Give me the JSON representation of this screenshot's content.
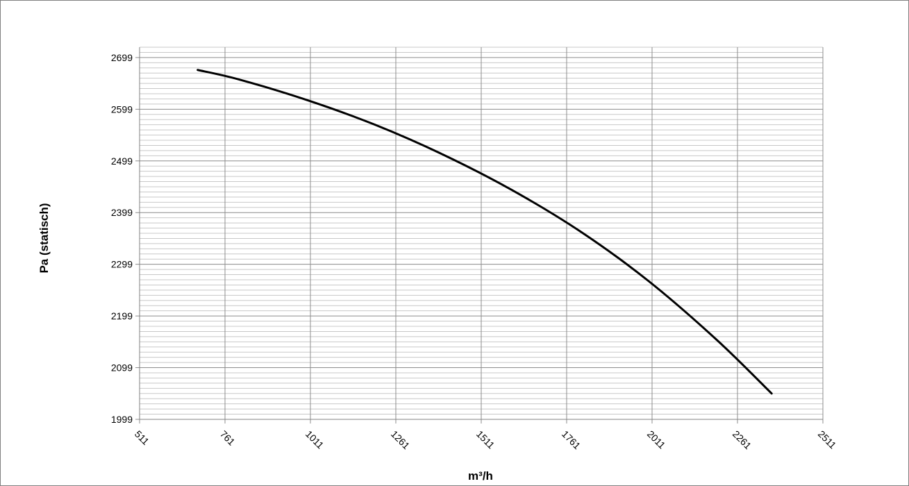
{
  "chart_data": {
    "type": "line",
    "title": "",
    "xlabel": "m³/h",
    "ylabel": "Pa (statisch)",
    "xlim": [
      511,
      2511
    ],
    "ylim": [
      1999,
      2719
    ],
    "x_ticks": [
      511,
      761,
      1011,
      1261,
      1511,
      1761,
      2011,
      2261,
      2511
    ],
    "y_ticks": [
      1999,
      2099,
      2199,
      2299,
      2399,
      2499,
      2599,
      2699
    ],
    "y_minor_step": 10,
    "grid": true,
    "legend": "none",
    "series": [
      {
        "color": "#000000",
        "x": [
          681,
          800,
          1000,
          1200,
          1400,
          1600,
          1800,
          2000,
          2200,
          2361
        ],
        "y": [
          2675,
          2657,
          2617,
          2569,
          2511,
          2443,
          2363,
          2267,
          2153,
          2049
        ]
      }
    ]
  }
}
